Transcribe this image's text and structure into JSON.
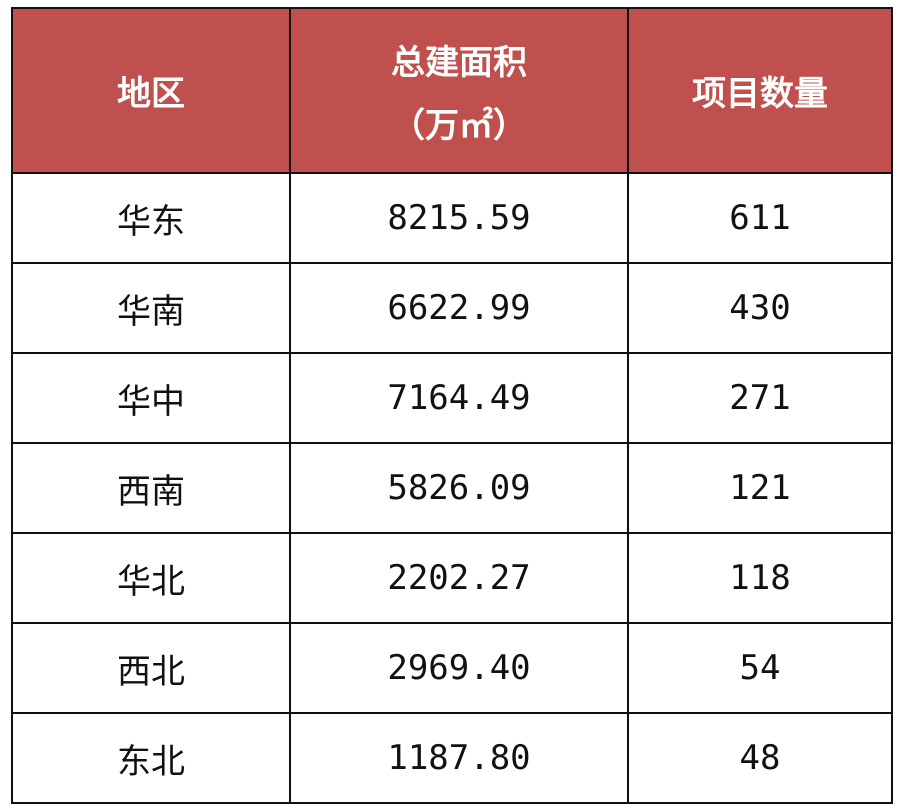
{
  "header": {
    "region": "地区",
    "area": "总建面积",
    "area_unit": "（万㎡）",
    "count": "项目数量",
    "background_color": "#c0504d"
  },
  "rows": [
    {
      "region": "华东",
      "area": "8215.59",
      "count": "611"
    },
    {
      "region": "华南",
      "area": "6622.99",
      "count": "430"
    },
    {
      "region": "华中",
      "area": "7164.49",
      "count": "271"
    },
    {
      "region": "西南",
      "area": "5826.09",
      "count": "121"
    },
    {
      "region": "华北",
      "area": "2202.27",
      "count": "118"
    },
    {
      "region": "西北",
      "area": "2969.40",
      "count": "54"
    },
    {
      "region": "东北",
      "area": "1187.80",
      "count": "48"
    }
  ]
}
